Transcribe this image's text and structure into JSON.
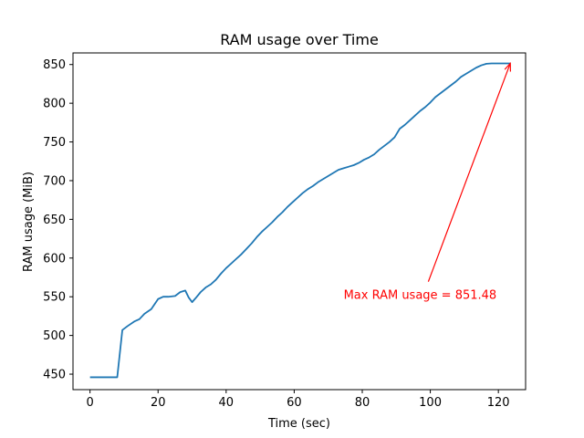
{
  "chart_data": {
    "type": "line",
    "title": "RAM usage over Time",
    "xlabel": "Time (sec)",
    "ylabel": "RAM usage (MiB)",
    "xlim": [
      -5,
      128
    ],
    "ylim": [
      430,
      865
    ],
    "xticks": [
      0,
      20,
      40,
      60,
      80,
      100,
      120
    ],
    "yticks": [
      450,
      500,
      550,
      600,
      650,
      700,
      750,
      800,
      850
    ],
    "grid": false,
    "series": [
      {
        "color": "#1f77b4",
        "x": [
          0,
          2,
          4,
          6,
          8,
          9.5,
          11,
          13,
          14.5,
          16,
          18,
          20,
          21.5,
          23,
          25,
          26.5,
          28,
          29,
          30,
          31,
          32.5,
          34,
          35.5,
          37,
          38.5,
          40,
          41.5,
          43,
          44.5,
          46,
          47.5,
          49,
          50.5,
          52,
          53.5,
          55,
          56.5,
          58,
          59.5,
          61,
          62.5,
          64,
          65.5,
          67,
          68.5,
          70,
          71.5,
          73,
          74.5,
          76,
          77.5,
          79,
          80.5,
          82,
          83.5,
          85,
          86.5,
          88,
          89.5,
          91,
          92.5,
          94,
          95.5,
          97,
          98.5,
          100,
          101.5,
          103,
          104.5,
          106,
          107.5,
          109,
          110.5,
          112,
          113.5,
          115,
          116.5,
          118,
          119.5,
          121,
          122.5,
          123.5
        ],
        "values": [
          446,
          446,
          446,
          446,
          446,
          507,
          512,
          518,
          521,
          528,
          534,
          547,
          550,
          550,
          551,
          556,
          558,
          549,
          543,
          548,
          556,
          562,
          566,
          572,
          580,
          587,
          593,
          599,
          605,
          612,
          619,
          627,
          634,
          640,
          646,
          653,
          659,
          666,
          672,
          678,
          684,
          689,
          693,
          698,
          702,
          706,
          710,
          714,
          716,
          718,
          720,
          723,
          727,
          730,
          734,
          740,
          745,
          750,
          756,
          767,
          772,
          778,
          784,
          790,
          795,
          801,
          808,
          813,
          818,
          823,
          828,
          834,
          838,
          842,
          846,
          849,
          851,
          851.48,
          851.48,
          851.48,
          851.48,
          851.48
        ]
      }
    ],
    "annotation": {
      "text": "Max RAM usage = 851.48",
      "color": "#ff0000",
      "xy": [
        123.5,
        851.48
      ],
      "xytext": [
        97,
        553
      ]
    }
  }
}
